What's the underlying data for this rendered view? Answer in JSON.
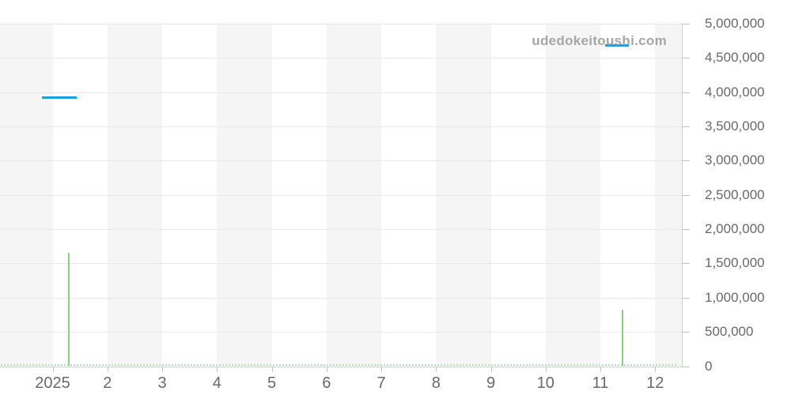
{
  "watermark": "udedokeitoushi.com",
  "colors": {
    "background": "#ffffff",
    "price_line": "#18a0dc",
    "volume_bar": "#8ccf8c",
    "volume_baseline": "#b5e2b5",
    "stripe": "#f5f5f5",
    "gridline": "#e8e8e8",
    "axis_line": "#cfcfcf",
    "tick": "#c2c2c2",
    "axis_label": "#696969",
    "watermark_color": "#a6a6a6"
  },
  "chart_data": {
    "type": "line+bar",
    "title": "",
    "subtitle": "",
    "legend": [],
    "grid": "on",
    "x_axis": {
      "label": "",
      "unit": "month",
      "tick_labels": [
        "2025",
        "2",
        "3",
        "4",
        "5",
        "6",
        "7",
        "8",
        "9",
        "10",
        "11",
        "12"
      ],
      "range_note": "Jan 2025 through Dec 2025, stripes alternate per month"
    },
    "y_axis": {
      "label": "",
      "side": "right",
      "min": 0,
      "max": 5000000,
      "step": 500000,
      "tick_labels": [
        "0",
        "500,000",
        "1,000,000",
        "1,500,000",
        "2,000,000",
        "2,500,000",
        "3,000,000",
        "3,500,000",
        "4,000,000",
        "4,500,000",
        "5,000,000"
      ]
    },
    "price_segments": [
      {
        "series": "price",
        "x_start_month": 0.81,
        "x_end_month": 1.44,
        "value": 3925000
      },
      {
        "series": "price",
        "x_start_month": 11.08,
        "x_end_month": 11.52,
        "value": 4680000
      }
    ],
    "volume_bars": [
      {
        "series": "volume",
        "x_month": 1.3,
        "value": 1660000
      },
      {
        "series": "volume",
        "x_month": 11.41,
        "value": 820000
      }
    ],
    "near_zero_volume_baseline": {
      "from_month": 0.05,
      "to_month": 12.4,
      "value": 10000
    }
  }
}
